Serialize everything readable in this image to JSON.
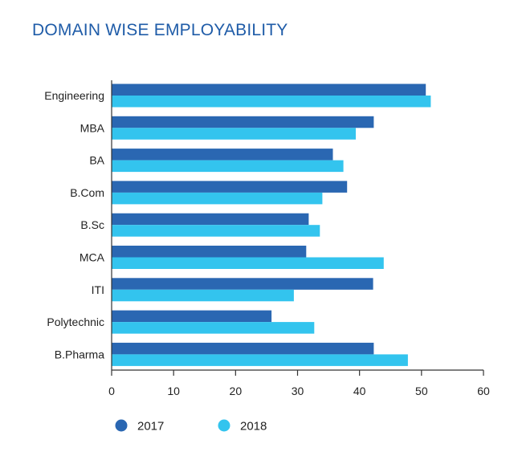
{
  "chart_data": {
    "type": "bar",
    "orientation": "horizontal",
    "title": "DOMAIN WISE EMPLOYABILITY",
    "categories": [
      "Engineering",
      "MBA",
      "BA",
      "B.Com",
      "B.Sc",
      "MCA",
      "ITI",
      "Polytechnic",
      "B.Pharma"
    ],
    "series": [
      {
        "name": "2017",
        "color": "#2a67b2",
        "values": [
          50.7,
          42.3,
          35.7,
          38.0,
          31.8,
          31.4,
          42.2,
          25.8,
          42.3
        ]
      },
      {
        "name": "2018",
        "color": "#33c4ee",
        "values": [
          51.5,
          39.4,
          37.4,
          34.0,
          33.6,
          43.9,
          29.4,
          32.7,
          47.8
        ]
      }
    ],
    "xlim": [
      0,
      60
    ],
    "xticks": [
      0,
      10,
      20,
      30,
      40,
      50,
      60
    ],
    "xlabel": "",
    "ylabel": "",
    "grid": false,
    "legend_position": "bottom-left"
  }
}
